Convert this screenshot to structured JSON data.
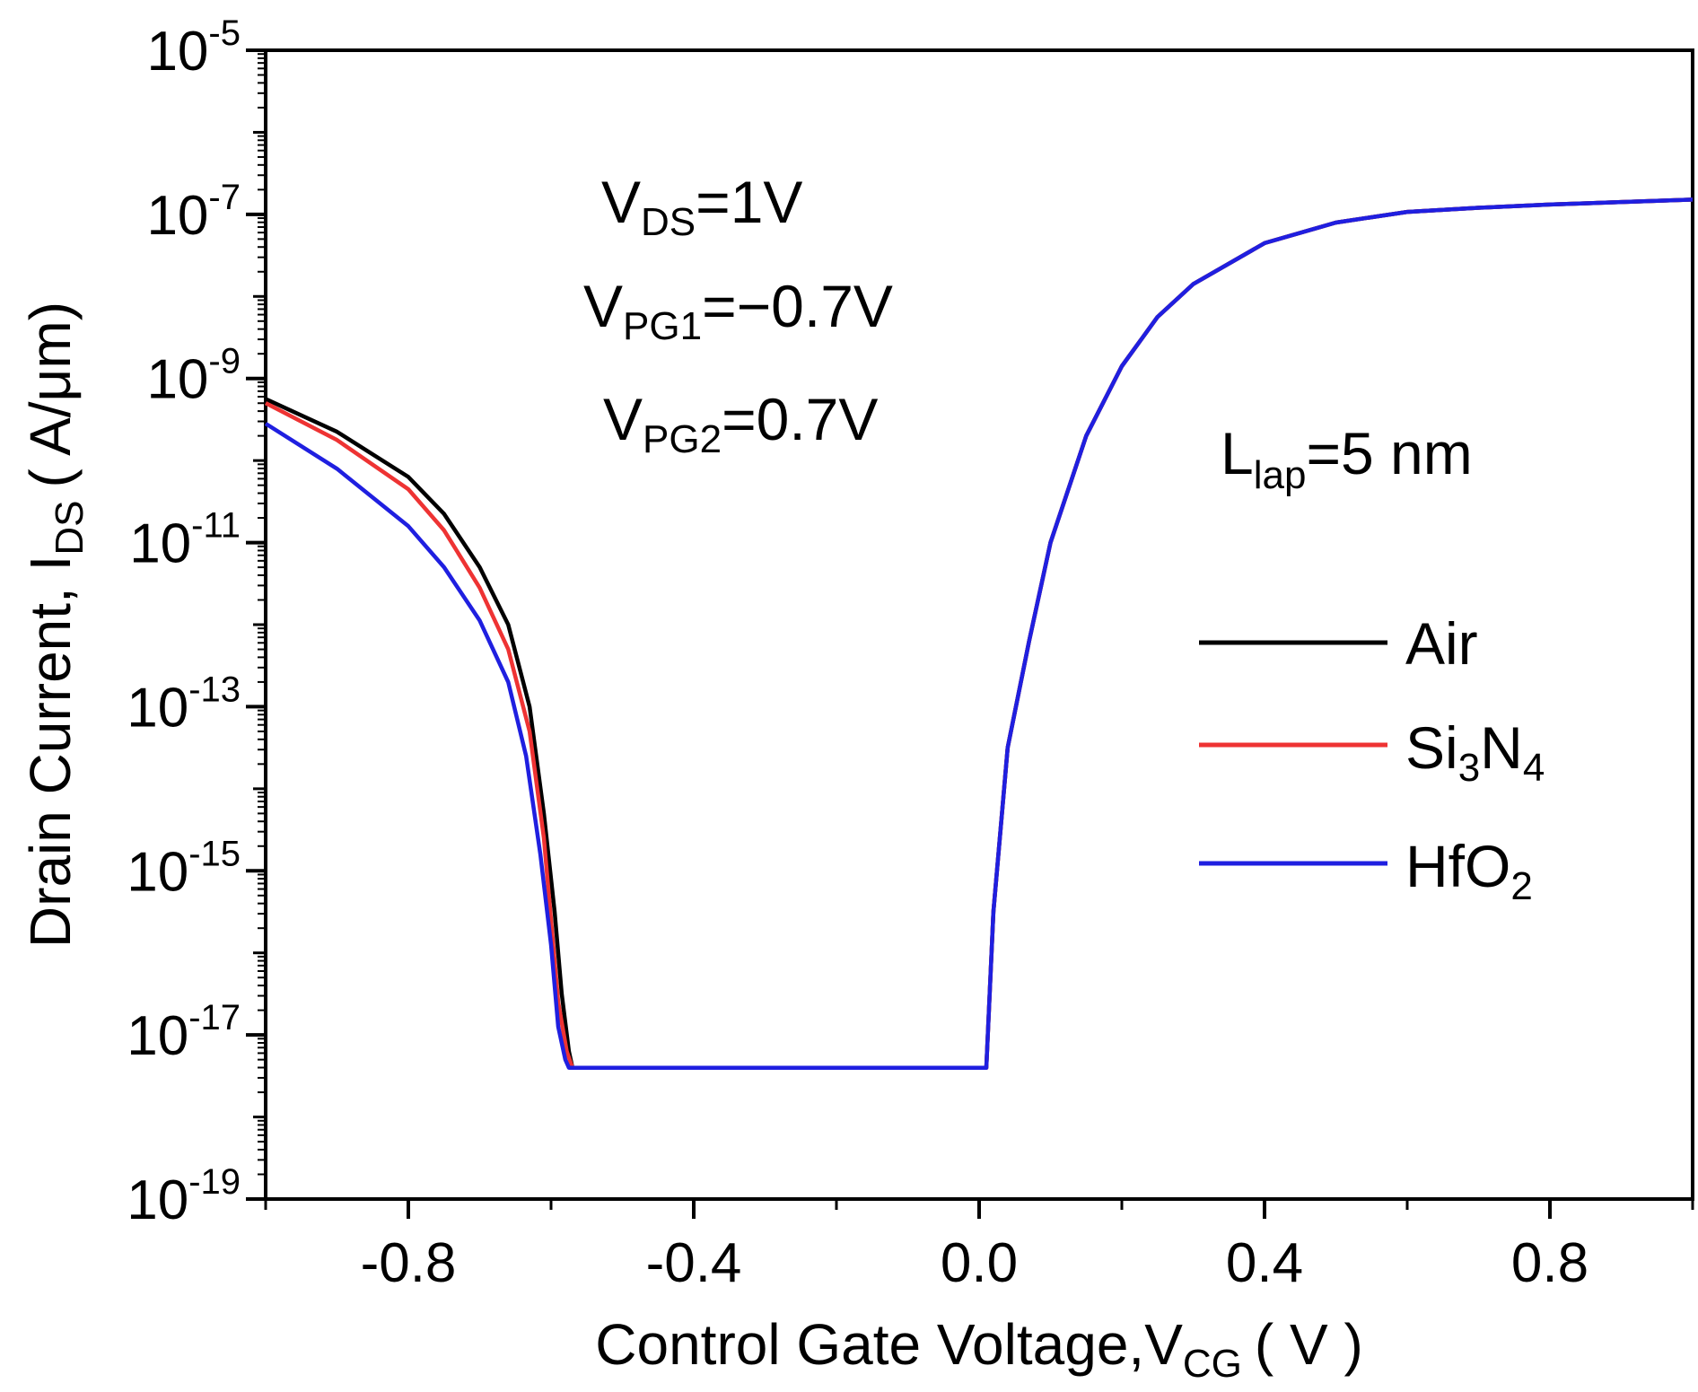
{
  "chart_data": {
    "type": "line",
    "title": "",
    "x_axis": {
      "label": "Control Gate Voltage,V",
      "label_sub": "CG",
      "unit": "( V )",
      "range": [
        -1.0,
        1.0
      ],
      "ticks": [
        {
          "value": -0.8,
          "label": "-0.8"
        },
        {
          "value": -0.4,
          "label": "-0.4"
        },
        {
          "value": 0.0,
          "label": "0.0"
        },
        {
          "value": 0.4,
          "label": "0.4"
        },
        {
          "value": 0.8,
          "label": "0.8"
        }
      ]
    },
    "y_axis": {
      "label": "Drain Current, I",
      "label_sub": "DS",
      "unit": "( A/μm)",
      "scale": "log",
      "range_exp": [
        -19,
        -5
      ],
      "ticks": [
        {
          "exp": -5,
          "base": "10",
          "sup": "-5"
        },
        {
          "exp": -7,
          "base": "10",
          "sup": "-7"
        },
        {
          "exp": -9,
          "base": "10",
          "sup": "-9"
        },
        {
          "exp": -11,
          "base": "10",
          "sup": "-11"
        },
        {
          "exp": -13,
          "base": "10",
          "sup": "-13"
        },
        {
          "exp": -15,
          "base": "10",
          "sup": "-15"
        },
        {
          "exp": -17,
          "base": "10",
          "sup": "-17"
        },
        {
          "exp": -19,
          "base": "10",
          "sup": "-19"
        }
      ]
    },
    "annotations": [
      {
        "main": "V",
        "sub": "DS",
        "rest": "=1V"
      },
      {
        "main": "V",
        "sub": "PG1",
        "rest": "=−0.7V"
      },
      {
        "main": "V",
        "sub": "PG2",
        "rest": "=0.7V"
      },
      {
        "main": "L",
        "sub": "lap",
        "rest": "=5 nm"
      }
    ],
    "legend": {
      "position": "right-middle",
      "entries": [
        {
          "name": "Air",
          "main": "Air",
          "sub": "",
          "rest": "",
          "color": "#000000"
        },
        {
          "name": "Si3N4",
          "main": "Si",
          "sub": "3",
          "rest": "N",
          "sub2": "4",
          "color": "#ee3333"
        },
        {
          "name": "HfO2",
          "main": "HfO",
          "sub": "2",
          "rest": "",
          "sub2": "",
          "color": "#1f1fe0"
        }
      ]
    },
    "series": [
      {
        "name": "Air",
        "color": "#000000",
        "points": [
          [
            -1.0,
            -9.25
          ],
          [
            -0.9,
            -9.65
          ],
          [
            -0.8,
            -10.2
          ],
          [
            -0.75,
            -10.65
          ],
          [
            -0.7,
            -11.3
          ],
          [
            -0.66,
            -12.0
          ],
          [
            -0.63,
            -13.0
          ],
          [
            -0.61,
            -14.3
          ],
          [
            -0.595,
            -15.5
          ],
          [
            -0.585,
            -16.5
          ],
          [
            -0.575,
            -17.2
          ],
          [
            -0.57,
            -17.4
          ],
          [
            -0.45,
            -17.4
          ],
          [
            0.0,
            -17.4
          ],
          [
            0.01,
            -17.4
          ],
          [
            0.02,
            -15.5
          ],
          [
            0.04,
            -13.5
          ],
          [
            0.07,
            -12.2
          ],
          [
            0.1,
            -11.0
          ],
          [
            0.15,
            -9.7
          ],
          [
            0.2,
            -8.85
          ],
          [
            0.25,
            -8.25
          ],
          [
            0.3,
            -7.85
          ],
          [
            0.4,
            -7.35
          ],
          [
            0.5,
            -7.1
          ],
          [
            0.6,
            -6.97
          ],
          [
            0.7,
            -6.92
          ],
          [
            0.8,
            -6.88
          ],
          [
            0.9,
            -6.85
          ],
          [
            1.0,
            -6.82
          ]
        ]
      },
      {
        "name": "Si3N4",
        "color": "#ee3333",
        "points": [
          [
            -1.0,
            -9.3
          ],
          [
            -0.9,
            -9.75
          ],
          [
            -0.8,
            -10.35
          ],
          [
            -0.75,
            -10.85
          ],
          [
            -0.7,
            -11.55
          ],
          [
            -0.66,
            -12.3
          ],
          [
            -0.63,
            -13.3
          ],
          [
            -0.61,
            -14.6
          ],
          [
            -0.6,
            -15.6
          ],
          [
            -0.59,
            -16.6
          ],
          [
            -0.578,
            -17.2
          ],
          [
            -0.57,
            -17.4
          ],
          [
            -0.45,
            -17.4
          ],
          [
            0.0,
            -17.4
          ],
          [
            0.01,
            -17.4
          ],
          [
            0.02,
            -15.5
          ],
          [
            0.04,
            -13.5
          ],
          [
            0.07,
            -12.2
          ],
          [
            0.1,
            -11.0
          ],
          [
            0.15,
            -9.7
          ],
          [
            0.2,
            -8.85
          ],
          [
            0.25,
            -8.25
          ],
          [
            0.3,
            -7.85
          ],
          [
            0.4,
            -7.35
          ],
          [
            0.5,
            -7.1
          ],
          [
            0.6,
            -6.97
          ],
          [
            0.7,
            -6.92
          ],
          [
            0.8,
            -6.88
          ],
          [
            0.9,
            -6.85
          ],
          [
            1.0,
            -6.82
          ]
        ]
      },
      {
        "name": "HfO2",
        "color": "#1f1fe0",
        "points": [
          [
            -1.0,
            -9.55
          ],
          [
            -0.9,
            -10.1
          ],
          [
            -0.8,
            -10.8
          ],
          [
            -0.75,
            -11.3
          ],
          [
            -0.7,
            -11.95
          ],
          [
            -0.66,
            -12.7
          ],
          [
            -0.635,
            -13.6
          ],
          [
            -0.615,
            -14.8
          ],
          [
            -0.6,
            -15.9
          ],
          [
            -0.59,
            -16.9
          ],
          [
            -0.58,
            -17.3
          ],
          [
            -0.575,
            -17.4
          ],
          [
            -0.45,
            -17.4
          ],
          [
            0.0,
            -17.4
          ],
          [
            0.01,
            -17.4
          ],
          [
            0.02,
            -15.5
          ],
          [
            0.04,
            -13.5
          ],
          [
            0.07,
            -12.2
          ],
          [
            0.1,
            -11.0
          ],
          [
            0.15,
            -9.7
          ],
          [
            0.2,
            -8.85
          ],
          [
            0.25,
            -8.25
          ],
          [
            0.3,
            -7.85
          ],
          [
            0.4,
            -7.35
          ],
          [
            0.5,
            -7.1
          ],
          [
            0.6,
            -6.97
          ],
          [
            0.7,
            -6.92
          ],
          [
            0.8,
            -6.88
          ],
          [
            0.9,
            -6.85
          ],
          [
            1.0,
            -6.82
          ]
        ]
      }
    ]
  }
}
